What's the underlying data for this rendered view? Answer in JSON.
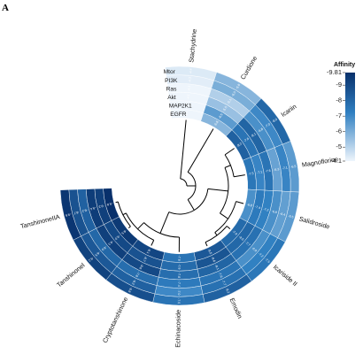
{
  "panel_label": "A",
  "chart_data": {
    "type": "heatmap",
    "layout": "circular",
    "compounds": [
      "Stachydrine",
      "Curdione",
      "Icariin",
      "Magnoflorine",
      "Salidroside",
      "Icariside II",
      "Emodin",
      "Echinacoside",
      "Cryptotanshinone",
      "Tanshinonel",
      "TanshinoneIIA"
    ],
    "targets": [
      "EGFR",
      "MAP2K1",
      "Akt",
      "Ras",
      "PI3K",
      "Mtor"
    ],
    "values": [
      [
        -4.1,
        -4.1,
        -4.1,
        -4.1,
        -4.3,
        -4.4
      ],
      [
        -5.8,
        -6.5,
        -5.5,
        -5.1,
        -6.0,
        -5.8
      ],
      [
        -8.2,
        -7.6,
        -8.1,
        -6.8,
        -7.0,
        -8.0
      ],
      [
        -7.5,
        -7.1,
        -7.6,
        -6.3,
        -7.1,
        -6.5
      ],
      [
        -6.8,
        -7.4,
        -7.2,
        -6.8,
        -6.4,
        -6.5
      ],
      [
        -7.9,
        -8.0,
        -7.7,
        -6.8,
        -7.2,
        -7.5
      ],
      [
        -8.5,
        -8.6,
        -8.1,
        -7.6,
        -7.7,
        -8.2
      ],
      [
        -7.6,
        -7.9,
        -7.8,
        -7.4,
        -7.0,
        -7.6
      ],
      [
        -9.1,
        -8.7,
        -9.0,
        -7.8,
        -8.2,
        -8.8
      ],
      [
        -9.5,
        -9.0,
        -9.3,
        -8.0,
        -8.5,
        -9.2
      ],
      [
        -9.8,
        -9.3,
        -9.4,
        -8.2,
        -8.7,
        -9.6
      ]
    ],
    "cell_labels": [
      [
        "-4.1",
        "-4.1",
        "-4.1",
        "-4.1",
        "-4.3",
        "-4.4"
      ],
      [
        "-5.8",
        "-6.5",
        "-5.5",
        "-5.1",
        "-6.0",
        "-5.8"
      ],
      [
        "-8.2",
        "-7.6",
        "-8.1",
        "-6.8",
        "-7.0",
        "-8.0"
      ],
      [
        "-7.5",
        "-7.1",
        "-7.6",
        "-6.3",
        "-7.1",
        "-6.5"
      ],
      [
        "-6.8",
        "-7.4",
        "-7.2",
        "-6.8",
        "-6.4",
        "-6.5"
      ],
      [
        "-7.9",
        "-8.0",
        "-7.7",
        "-6.8",
        "-7.2",
        "-7.5"
      ],
      [
        "-8.5",
        "-8.6",
        "-8.1",
        "-7.6",
        "-7.7",
        "-8.2"
      ],
      [
        "-7.6",
        "-7.9",
        "-7.8",
        "-7.4",
        "-7.0",
        "-7.6"
      ],
      [
        "-9.1",
        "-8.7",
        "-9.0",
        "-7.8",
        "-8.2",
        "-8.8"
      ],
      [
        "-9.5",
        "-9.0",
        "-9.3",
        "-8.0",
        "-8.5",
        "-9.2"
      ],
      [
        "-9.8",
        "-9.3",
        "-9.4",
        "-8.2",
        "-8.7",
        "-9.6"
      ]
    ],
    "legend": {
      "title": "Affinity",
      "range": [
        -9.81,
        -4.1
      ],
      "ticks": [
        "-9.81",
        "-9",
        "-8",
        "-7",
        "-6",
        "-5",
        "-4.1"
      ],
      "tick_values": [
        -9.81,
        -9,
        -8,
        -7,
        -6,
        -5,
        -4.1
      ],
      "colors": [
        "#08306b",
        "#2f7fc1",
        "#eef5fc"
      ],
      "placement": "right"
    },
    "dendrogram": true,
    "grid": false
  }
}
